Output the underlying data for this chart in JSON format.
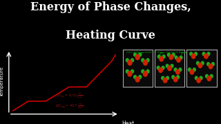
{
  "background_color": "#000000",
  "title_line1": "Energy of Phase Changes,",
  "title_line2": "Heating Curve",
  "title_color": "#ffffff",
  "title_fontsize": 11.5,
  "xlabel": "Heat",
  "ylabel": "Temperature",
  "axis_color": "#ffffff",
  "curve_color": "#cc0000",
  "ann_color": "#8b1010",
  "green_color": "#22aa22",
  "red_mol_color": "#cc2200",
  "box_edge_color": "#aaaaaa",
  "box_face_color": "#0a0a0a",
  "heating_curve_x": [
    0.02,
    0.1,
    0.19,
    0.31,
    0.4,
    0.53,
    0.55
  ],
  "heating_curve_y": [
    0.05,
    0.2,
    0.2,
    0.42,
    0.42,
    0.82,
    0.92
  ],
  "spec_heat_color": "#009900"
}
